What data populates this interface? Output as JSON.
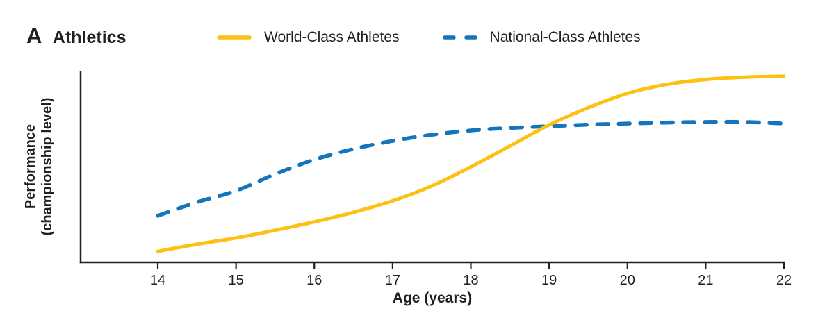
{
  "header": {
    "panel_label": "A",
    "title": "Athletics"
  },
  "colors": {
    "world_class": "#FCC113",
    "national_class": "#1474BC",
    "axis": "#231F20",
    "text": "#231F20",
    "background": "#FFFFFF"
  },
  "chart_data": {
    "type": "line",
    "title": "Athletics",
    "panel_label": "A",
    "xlabel": "Age (years)",
    "ylabel": "Performance (championship level)",
    "ylabel_lines": [
      "Performance",
      "(championship level)"
    ],
    "x_ticks": [
      14,
      15,
      16,
      17,
      18,
      19,
      20,
      21,
      22
    ],
    "xlim": [
      14,
      22
    ],
    "ylim": [
      0,
      1
    ],
    "grid": false,
    "legend_position": "top",
    "y_value_note": "y axis has no numeric ticks; values are normalized performance 0-1 estimated from pixel positions",
    "x": [
      14,
      14.5,
      15,
      15.5,
      16,
      16.5,
      17,
      17.5,
      18,
      18.5,
      19,
      19.5,
      20,
      20.5,
      21,
      21.5,
      22
    ],
    "series": [
      {
        "name": "World-Class Athletes",
        "line_style": "solid",
        "color": "#FCC113",
        "values": [
          0.058,
          0.095,
          0.128,
          0.168,
          0.212,
          0.262,
          0.322,
          0.4,
          0.5,
          0.61,
          0.72,
          0.81,
          0.885,
          0.932,
          0.958,
          0.97,
          0.975
        ]
      },
      {
        "name": "National-Class Athletes",
        "line_style": "dashed",
        "color": "#1474BC",
        "values": [
          0.244,
          0.315,
          0.375,
          0.462,
          0.538,
          0.594,
          0.636,
          0.668,
          0.691,
          0.704,
          0.713,
          0.721,
          0.727,
          0.732,
          0.735,
          0.735,
          0.727
        ]
      }
    ]
  }
}
